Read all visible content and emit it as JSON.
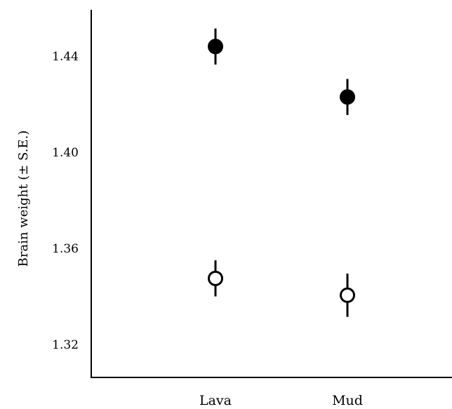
{
  "chart_data": {
    "type": "scatter",
    "title": "",
    "xlabel": "",
    "ylabel": "Brain weight (± S.E.)",
    "categories": [
      "Lava",
      "Mud"
    ],
    "ylim": [
      1.305,
      1.46
    ],
    "yticks": [
      "1.32",
      "1.36",
      "1.40",
      "1.44"
    ],
    "grid": false,
    "legend": "none",
    "series": [
      {
        "fill": "#000000",
        "values": [
          1.444,
          1.423
        ],
        "se": [
          0.0075,
          0.0075
        ]
      },
      {
        "fill": "#ffffff",
        "values": [
          1.3475,
          1.3405
        ],
        "se": [
          0.0075,
          0.009
        ]
      }
    ]
  }
}
